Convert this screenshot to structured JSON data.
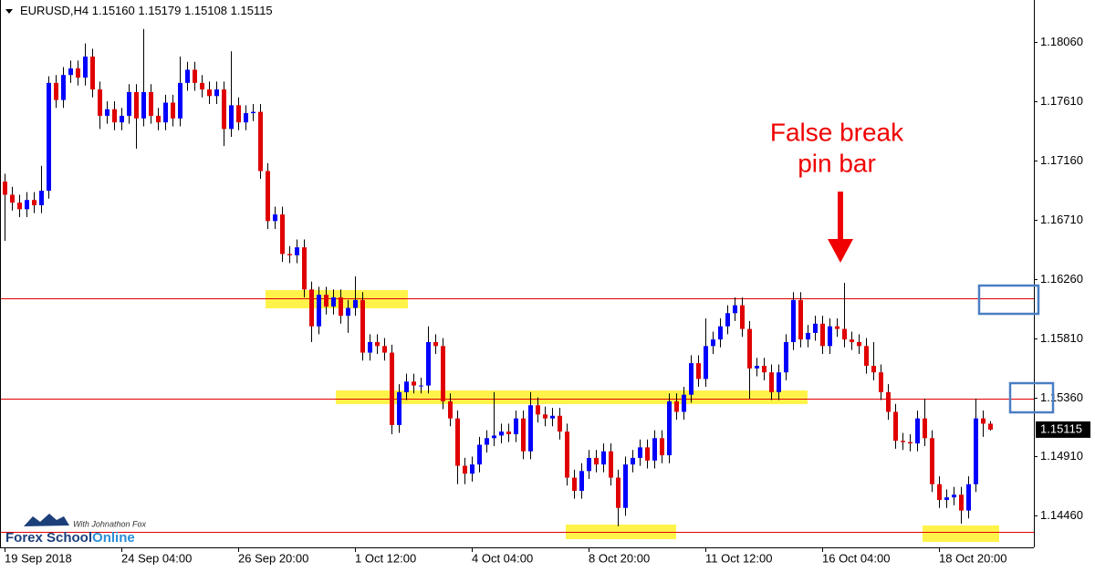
{
  "chart_data": {
    "type": "candlestick",
    "symbol": "EURUSD,H4",
    "quote": [
      "1.15160",
      "1.15179",
      "1.15108",
      "1.15115"
    ],
    "up_color": "#0000ff",
    "down_color": "#e00000",
    "wick_color": "#000000",
    "ylim": [
      1.1422,
      1.1838
    ],
    "yticks": [
      {
        "value": 1.1806,
        "label": "1.18060"
      },
      {
        "value": 1.1761,
        "label": "1.17610"
      },
      {
        "value": 1.1716,
        "label": "1.17160"
      },
      {
        "value": 1.1671,
        "label": "1.16710"
      },
      {
        "value": 1.1626,
        "label": "1.16260"
      },
      {
        "value": 1.1581,
        "label": "1.15810"
      },
      {
        "value": 1.1536,
        "label": "1.15360"
      },
      {
        "value": 1.1491,
        "label": "1.14910"
      },
      {
        "value": 1.1446,
        "label": "1.14460"
      }
    ],
    "last_price": 1.15115,
    "levels": [
      1.1611,
      1.1535,
      1.1434
    ],
    "level_color": "#e00000",
    "annotation": [
      "False break",
      "pin bar"
    ],
    "logo": {
      "tagline": "With Johnathon Fox",
      "name": "Forex School",
      "name_accent": "Online"
    },
    "categories": [
      "19 Sep 2018",
      null,
      null,
      null,
      null,
      null,
      null,
      null,
      null,
      null,
      null,
      null,
      null,
      null,
      null,
      null,
      "24 Sep 04:00",
      null,
      null,
      null,
      null,
      null,
      null,
      null,
      null,
      null,
      null,
      null,
      null,
      null,
      null,
      null,
      "26 Sep 20:00",
      null,
      null,
      null,
      null,
      null,
      null,
      null,
      null,
      null,
      null,
      null,
      null,
      null,
      null,
      null,
      "1 Oct 12:00",
      null,
      null,
      null,
      null,
      null,
      null,
      null,
      null,
      null,
      null,
      null,
      null,
      null,
      null,
      null,
      "4 Oct 04:00",
      null,
      null,
      null,
      null,
      null,
      null,
      null,
      null,
      null,
      null,
      null,
      null,
      null,
      null,
      null,
      "8 Oct 20:00",
      null,
      null,
      null,
      null,
      null,
      null,
      null,
      null,
      null,
      null,
      null,
      null,
      null,
      null,
      null,
      "11 Oct 12:00",
      null,
      null,
      null,
      null,
      null,
      null,
      null,
      null,
      null,
      null,
      null,
      null,
      null,
      null,
      null,
      "16 Oct 04:00",
      null,
      null,
      null,
      null,
      null,
      null,
      null,
      null,
      null,
      null,
      null,
      null,
      null,
      null,
      null,
      "18 Oct 20:00",
      null,
      null,
      null,
      null,
      null,
      null,
      null
    ],
    "open": [
      1.17,
      1.169,
      1.1684,
      1.1679,
      1.1686,
      1.1682,
      1.1693,
      1.1775,
      1.1762,
      1.1781,
      1.1786,
      1.1779,
      1.1795,
      1.177,
      1.175,
      1.1755,
      1.1745,
      1.175,
      1.1768,
      1.1748,
      1.1768,
      1.175,
      1.1745,
      1.176,
      1.1748,
      1.1775,
      1.1785,
      1.1775,
      1.177,
      1.1765,
      1.177,
      1.174,
      1.1758,
      1.1745,
      1.1752,
      1.1753,
      1.1708,
      1.167,
      1.1675,
      1.1645,
      1.1644,
      1.165,
      1.1618,
      1.159,
      1.1614,
      1.1605,
      1.1612,
      1.1598,
      1.1604,
      1.161,
      1.157,
      1.1578,
      1.1575,
      1.157,
      1.1515,
      1.154,
      1.1548,
      1.1545,
      1.1545,
      1.1578,
      1.1575,
      1.1533,
      1.152,
      1.1484,
      1.1478,
      1.1485,
      1.15,
      1.1505,
      1.1507,
      1.151,
      1.1508,
      1.152,
      1.1495,
      1.153,
      1.1523,
      1.152,
      1.1522,
      1.151,
      1.1475,
      1.1465,
      1.148,
      1.149,
      1.1485,
      1.1495,
      1.1475,
      1.1452,
      1.1485,
      1.149,
      1.1498,
      1.1488,
      1.1505,
      1.1492,
      1.1533,
      1.1525,
      1.1538,
      1.1562,
      1.155,
      1.1575,
      1.158,
      1.159,
      1.16,
      1.1606,
      1.1588,
      1.1558,
      1.156,
      1.1555,
      1.154,
      1.1555,
      1.1578,
      1.161,
      1.158,
      1.1585,
      1.1592,
      1.1575,
      1.159,
      1.1588,
      1.158,
      1.1578,
      1.1575,
      1.156,
      1.1555,
      1.154,
      1.1525,
      1.1503,
      1.1502,
      1.1501,
      1.152,
      1.1505,
      1.147,
      1.1458,
      1.146,
      1.1462,
      1.145,
      1.147,
      1.152,
      1.1516
    ],
    "high": [
      1.1706,
      1.1696,
      1.169,
      1.1692,
      1.1692,
      1.1712,
      1.178,
      1.1781,
      1.1787,
      1.1792,
      1.1792,
      1.1805,
      1.1801,
      1.1776,
      1.1761,
      1.1761,
      1.1756,
      1.1774,
      1.1774,
      1.1816,
      1.1774,
      1.1756,
      1.1766,
      1.1766,
      1.1795,
      1.1791,
      1.1791,
      1.1781,
      1.1776,
      1.1776,
      1.1776,
      1.1799,
      1.1764,
      1.1758,
      1.1759,
      1.1759,
      1.1714,
      1.1681,
      1.1681,
      1.1651,
      1.1656,
      1.1656,
      1.1624,
      1.162,
      1.162,
      1.1618,
      1.1618,
      1.161,
      1.1628,
      1.1616,
      1.1584,
      1.1584,
      1.1581,
      1.1576,
      1.1546,
      1.1554,
      1.1554,
      1.1551,
      1.159,
      1.1584,
      1.1581,
      1.1539,
      1.1526,
      1.149,
      1.1491,
      1.1506,
      1.1511,
      1.154,
      1.1516,
      1.1516,
      1.1526,
      1.1526,
      1.154,
      1.1536,
      1.1529,
      1.1528,
      1.1528,
      1.1516,
      1.1481,
      1.1486,
      1.1496,
      1.1496,
      1.1501,
      1.1501,
      1.1481,
      1.1491,
      1.1496,
      1.1504,
      1.1504,
      1.1511,
      1.1511,
      1.1539,
      1.1539,
      1.1544,
      1.1568,
      1.1568,
      1.1596,
      1.1586,
      1.1596,
      1.1606,
      1.1612,
      1.1612,
      1.1594,
      1.1566,
      1.1566,
      1.1561,
      1.1561,
      1.1584,
      1.1616,
      1.1616,
      1.1591,
      1.1598,
      1.1598,
      1.1596,
      1.1596,
      1.1623,
      1.1586,
      1.1584,
      1.1581,
      1.1578,
      1.1561,
      1.1546,
      1.1531,
      1.1509,
      1.1508,
      1.1526,
      1.1535,
      1.1511,
      1.1476,
      1.1466,
      1.1468,
      1.1468,
      1.1476,
      1.1535,
      1.1526,
      1.15179
    ],
    "low": [
      1.1655,
      1.1678,
      1.1673,
      1.1673,
      1.1676,
      1.1676,
      1.1687,
      1.1756,
      1.1756,
      1.1775,
      1.1773,
      1.1773,
      1.1764,
      1.174,
      1.1744,
      1.1739,
      1.1739,
      1.1744,
      1.1725,
      1.1742,
      1.1744,
      1.1739,
      1.1739,
      1.1742,
      1.1742,
      1.1769,
      1.1769,
      1.1764,
      1.1759,
      1.1759,
      1.1727,
      1.1734,
      1.1739,
      1.1739,
      1.1746,
      1.1702,
      1.1664,
      1.1664,
      1.1639,
      1.1638,
      1.1638,
      1.1612,
      1.1578,
      1.1584,
      1.1599,
      1.1599,
      1.1592,
      1.1585,
      1.1598,
      1.1564,
      1.1564,
      1.1569,
      1.1564,
      1.1508,
      1.1509,
      1.1534,
      1.1539,
      1.1539,
      1.1539,
      1.1569,
      1.1527,
      1.1514,
      1.147,
      1.147,
      1.1472,
      1.1479,
      1.1494,
      1.1499,
      1.1501,
      1.1502,
      1.1502,
      1.1489,
      1.1489,
      1.1517,
      1.1514,
      1.1514,
      1.1504,
      1.1469,
      1.1459,
      1.1459,
      1.1474,
      1.1479,
      1.1479,
      1.1469,
      1.1438,
      1.1446,
      1.1479,
      1.1484,
      1.1482,
      1.1482,
      1.1486,
      1.1486,
      1.1519,
      1.1519,
      1.1532,
      1.1544,
      1.1544,
      1.1569,
      1.1574,
      1.1584,
      1.1594,
      1.1582,
      1.1535,
      1.1552,
      1.1549,
      1.1534,
      1.1534,
      1.1549,
      1.1572,
      1.1574,
      1.1574,
      1.1579,
      1.1569,
      1.1569,
      1.1582,
      1.1574,
      1.1572,
      1.1569,
      1.1554,
      1.1549,
      1.1534,
      1.1519,
      1.1497,
      1.1496,
      1.1495,
      1.1495,
      1.1499,
      1.1464,
      1.1452,
      1.1452,
      1.1454,
      1.144,
      1.1444,
      1.1464,
      1.1506,
      1.15108
    ],
    "close": [
      1.169,
      1.1684,
      1.1679,
      1.1686,
      1.1682,
      1.1693,
      1.1775,
      1.1762,
      1.1781,
      1.1786,
      1.1779,
      1.1795,
      1.177,
      1.175,
      1.1755,
      1.1745,
      1.175,
      1.1768,
      1.1748,
      1.1768,
      1.175,
      1.1745,
      1.176,
      1.1748,
      1.1775,
      1.1785,
      1.1775,
      1.177,
      1.1765,
      1.177,
      1.174,
      1.1758,
      1.1745,
      1.1752,
      1.1753,
      1.1708,
      1.167,
      1.1675,
      1.1645,
      1.1644,
      1.165,
      1.1618,
      1.159,
      1.1614,
      1.1605,
      1.1612,
      1.1598,
      1.1604,
      1.161,
      1.157,
      1.1578,
      1.1575,
      1.157,
      1.1515,
      1.154,
      1.1548,
      1.1545,
      1.1545,
      1.1578,
      1.1575,
      1.1533,
      1.152,
      1.1484,
      1.1478,
      1.1485,
      1.15,
      1.1505,
      1.1507,
      1.151,
      1.1508,
      1.152,
      1.1495,
      1.153,
      1.1523,
      1.152,
      1.1522,
      1.151,
      1.1475,
      1.1465,
      1.148,
      1.149,
      1.1485,
      1.1495,
      1.1475,
      1.1452,
      1.1485,
      1.149,
      1.1498,
      1.1488,
      1.1505,
      1.1492,
      1.1533,
      1.1525,
      1.1538,
      1.1562,
      1.155,
      1.1575,
      1.158,
      1.159,
      1.16,
      1.1606,
      1.1588,
      1.1558,
      1.156,
      1.1555,
      1.154,
      1.1555,
      1.1578,
      1.161,
      1.158,
      1.1585,
      1.1592,
      1.1575,
      1.159,
      1.1588,
      1.158,
      1.1578,
      1.1575,
      1.156,
      1.1555,
      1.154,
      1.1525,
      1.1503,
      1.1502,
      1.1501,
      1.152,
      1.1505,
      1.147,
      1.1458,
      1.146,
      1.1462,
      1.145,
      1.147,
      1.152,
      1.1516,
      1.15115
    ]
  }
}
